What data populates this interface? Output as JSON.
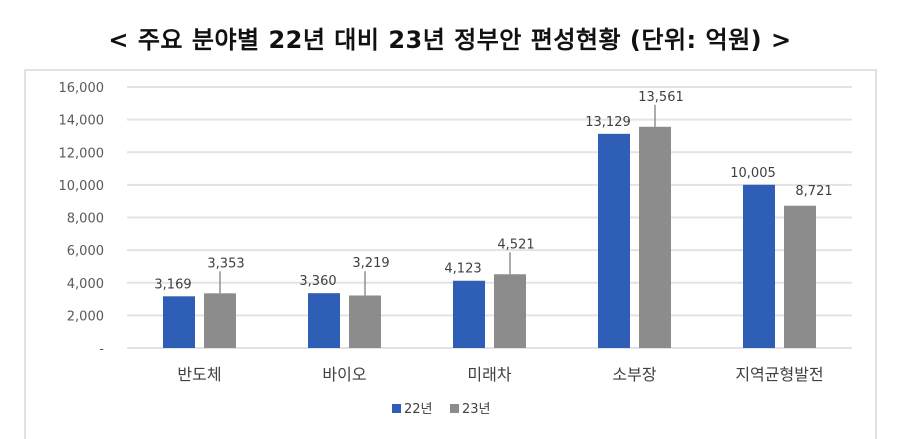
{
  "title": "< 주요 분야별 22년 대비 23년 정부안 편성현황 (단위: 억원) >",
  "colors": {
    "series_22": "#2E5EB5",
    "series_23": "#8C8C8C",
    "grid": "#e3e3e3"
  },
  "chart_data": {
    "type": "bar",
    "title": "주요 분야별 22년 대비 23년 정부안 편성현황 (단위: 억원)",
    "xlabel": "",
    "ylabel": "",
    "ylim": [
      0,
      16000
    ],
    "yticks": [
      "-",
      "2,000",
      "4,000",
      "6,000",
      "8,000",
      "10,000",
      "12,000",
      "14,000",
      "16,000"
    ],
    "grid": true,
    "legend_position": "bottom",
    "categories": [
      "반도체",
      "바이오",
      "미래차",
      "소부장",
      "지역균형발전"
    ],
    "series": [
      {
        "name": "22년",
        "values": [
          3169,
          3360,
          4123,
          13129,
          10005
        ],
        "labels": [
          "3,169",
          "3,360",
          "4,123",
          "13,129",
          "10,005"
        ]
      },
      {
        "name": "23년",
        "values": [
          3353,
          3219,
          4521,
          13561,
          8721
        ],
        "labels": [
          "3,353",
          "3,219",
          "4,521",
          "13,561",
          "8,721"
        ]
      }
    ]
  }
}
